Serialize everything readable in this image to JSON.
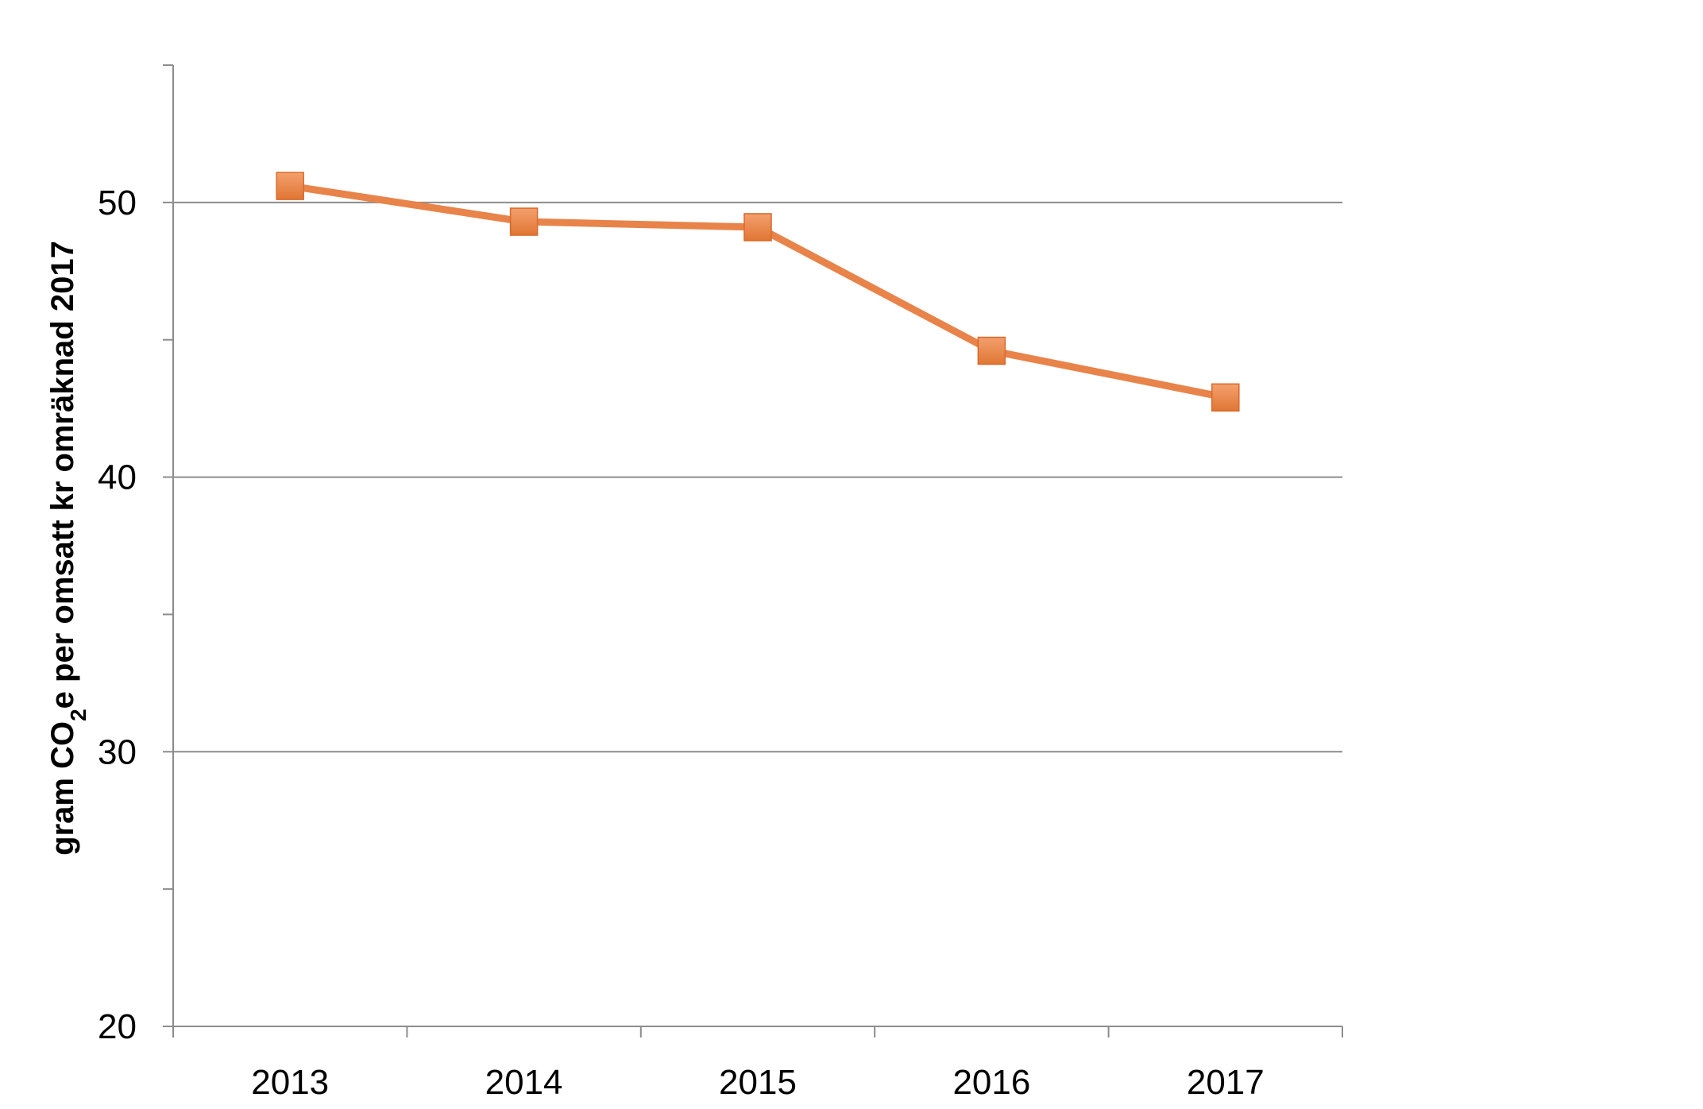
{
  "chart_data": {
    "type": "line",
    "title": "",
    "xlabel": "",
    "ylabel": {
      "prefix": "gram CO",
      "subscript": "2",
      "suffix": "e per omsatt kr omräknad 2017"
    },
    "categories": [
      "2013",
      "2014",
      "2015",
      "2016",
      "2017"
    ],
    "series": [
      {
        "values": [
          50.6,
          49.3,
          49.1,
          44.6,
          42.9
        ]
      }
    ],
    "ylim": [
      20,
      55
    ],
    "yticks": [
      20,
      30,
      40,
      50
    ],
    "ymajor_grid": [
      30,
      40,
      50
    ],
    "yminor_ticks": [
      25,
      35,
      45
    ],
    "grid": true,
    "legend": "none",
    "colors": {
      "line": "#E8834A",
      "marker": "#E8834A",
      "grid": "#8c8c8c",
      "axis": "#8c8c8c"
    }
  }
}
